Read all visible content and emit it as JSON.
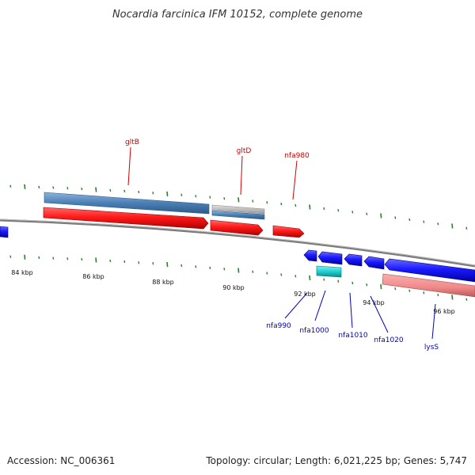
{
  "title": "Nocardia farcinica IFM 10152, complete genome",
  "footer": {
    "accession": "Accession: NC_006361",
    "stats": "Topology: circular; Length: 6,021,225 bp; Genes: 5,747"
  },
  "colors": {
    "tick": "#1a8a1a",
    "backbone": "#777777",
    "forward_cds": "#ff1010",
    "reverse_cds": "#1010ff",
    "feature_band_blue": "#4a7fb5",
    "feature_band_grey": "#b9b9b9",
    "feature_cyan": "#20d0d0",
    "feature_pink": "#f09090",
    "label_forward": "#cc0000",
    "label_reverse": "#0000bb"
  },
  "ticks": [
    "84 kbp",
    "86 kbp",
    "88 kbp",
    "90 kbp",
    "92 kbp",
    "94 kbp",
    "96 kbp"
  ],
  "genes_forward": [
    "gltB",
    "gltD",
    "nfa980"
  ],
  "genes_reverse": [
    "nfa990",
    "nfa1000",
    "nfa1010",
    "nfa1020",
    "lysS"
  ]
}
